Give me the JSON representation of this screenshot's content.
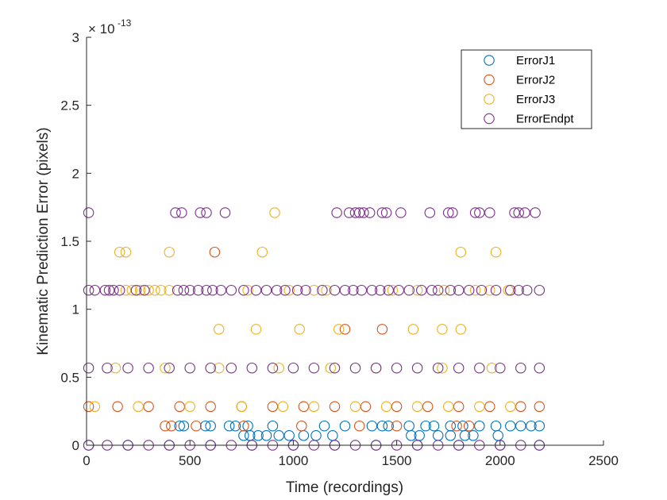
{
  "chart_data": {
    "type": "scatter",
    "xlabel": "Time (recordings)",
    "ylabel": "Kinematic Prediction Error (pixels)",
    "xlim": [
      0,
      2500
    ],
    "ylim": [
      0,
      3e-13
    ],
    "y_exponent_base": "× 10",
    "y_exponent_power": "-13",
    "xticks": [
      0,
      500,
      1000,
      1500,
      2000,
      2500
    ],
    "xtick_labels": [
      "0",
      "500",
      "1000",
      "1500",
      "2000",
      "2500"
    ],
    "yticks": [
      0,
      0.5,
      1,
      1.5,
      2,
      2.5,
      3
    ],
    "ytick_labels": [
      "0",
      "0.5",
      "1",
      "1.5",
      "2",
      "2.5",
      "3"
    ],
    "grid": false,
    "legend_position": "top-right",
    "marker": "open-circle",
    "series": [
      {
        "name": "ErrorJ1",
        "color": "#0072BD",
        "points": [
          [
            10,
            0
          ],
          [
            200,
            0
          ],
          [
            400,
            0
          ],
          [
            600,
            0
          ],
          [
            800,
            0
          ],
          [
            1000,
            0
          ],
          [
            1200,
            0
          ],
          [
            1400,
            0
          ],
          [
            1600,
            0
          ],
          [
            1800,
            0
          ],
          [
            2000,
            0
          ],
          [
            2190,
            0
          ],
          [
            450,
            1.42e-14
          ],
          [
            470,
            1.42e-14
          ],
          [
            575,
            1.42e-14
          ],
          [
            600,
            1.42e-14
          ],
          [
            690,
            1.42e-14
          ],
          [
            720,
            1.42e-14
          ],
          [
            780,
            1.42e-14
          ],
          [
            900,
            1.42e-14
          ],
          [
            1150,
            1.42e-14
          ],
          [
            1250,
            1.42e-14
          ],
          [
            1380,
            1.42e-14
          ],
          [
            1430,
            1.42e-14
          ],
          [
            1460,
            1.42e-14
          ],
          [
            1560,
            1.42e-14
          ],
          [
            1640,
            1.42e-14
          ],
          [
            1680,
            1.42e-14
          ],
          [
            1760,
            1.42e-14
          ],
          [
            1820,
            1.42e-14
          ],
          [
            1900,
            1.42e-14
          ],
          [
            1980,
            1.42e-14
          ],
          [
            2050,
            1.42e-14
          ],
          [
            2100,
            1.42e-14
          ],
          [
            2150,
            1.42e-14
          ],
          [
            2190,
            1.42e-14
          ],
          [
            760,
            7.1e-15
          ],
          [
            790,
            7.1e-15
          ],
          [
            830,
            7.1e-15
          ],
          [
            870,
            7.1e-15
          ],
          [
            930,
            7.1e-15
          ],
          [
            980,
            7.1e-15
          ],
          [
            1050,
            7.1e-15
          ],
          [
            1110,
            7.1e-15
          ],
          [
            1190,
            7.1e-15
          ],
          [
            1570,
            7.1e-15
          ],
          [
            1610,
            7.1e-15
          ],
          [
            1700,
            7.1e-15
          ],
          [
            1760,
            7.1e-15
          ],
          [
            1830,
            7.1e-15
          ],
          [
            1870,
            7.1e-15
          ],
          [
            1990,
            7.1e-15
          ]
        ]
      },
      {
        "name": "ErrorJ2",
        "color": "#D95319",
        "points": [
          [
            10,
            2.84e-14
          ],
          [
            150,
            2.84e-14
          ],
          [
            300,
            2.84e-14
          ],
          [
            450,
            2.84e-14
          ],
          [
            600,
            2.84e-14
          ],
          [
            750,
            2.84e-14
          ],
          [
            900,
            2.84e-14
          ],
          [
            1050,
            2.84e-14
          ],
          [
            1200,
            2.84e-14
          ],
          [
            1350,
            2.84e-14
          ],
          [
            1500,
            2.84e-14
          ],
          [
            1650,
            2.84e-14
          ],
          [
            1800,
            2.84e-14
          ],
          [
            1950,
            2.84e-14
          ],
          [
            2100,
            2.84e-14
          ],
          [
            2190,
            2.84e-14
          ],
          [
            380,
            1.42e-14
          ],
          [
            410,
            1.42e-14
          ],
          [
            530,
            1.42e-14
          ],
          [
            760,
            1.42e-14
          ],
          [
            1040,
            1.42e-14
          ],
          [
            1320,
            1.42e-14
          ],
          [
            1500,
            1.42e-14
          ],
          [
            1790,
            1.42e-14
          ],
          [
            1850,
            1.42e-14
          ],
          [
            1250,
            8.53e-14
          ],
          [
            1430,
            8.53e-14
          ],
          [
            620,
            1.42e-13
          ]
        ]
      },
      {
        "name": "ErrorJ3",
        "color": "#EDB120",
        "points": [
          [
            40,
            2.84e-14
          ],
          [
            250,
            2.84e-14
          ],
          [
            500,
            2.84e-14
          ],
          [
            750,
            2.84e-14
          ],
          [
            950,
            2.84e-14
          ],
          [
            1100,
            2.84e-14
          ],
          [
            1300,
            2.84e-14
          ],
          [
            1450,
            2.84e-14
          ],
          [
            1600,
            2.84e-14
          ],
          [
            1750,
            2.84e-14
          ],
          [
            1900,
            2.84e-14
          ],
          [
            2050,
            2.84e-14
          ],
          [
            140,
            5.68e-14
          ],
          [
            380,
            5.68e-14
          ],
          [
            640,
            5.68e-14
          ],
          [
            930,
            5.68e-14
          ],
          [
            1180,
            5.68e-14
          ],
          [
            1400,
            5.68e-14
          ],
          [
            1720,
            5.68e-14
          ],
          [
            1960,
            5.68e-14
          ],
          [
            190,
            1.14e-13
          ],
          [
            220,
            1.14e-13
          ],
          [
            260,
            1.14e-13
          ],
          [
            300,
            1.14e-13
          ],
          [
            330,
            1.14e-13
          ],
          [
            360,
            1.14e-13
          ],
          [
            400,
            1.14e-13
          ],
          [
            780,
            1.14e-13
          ],
          [
            980,
            1.14e-13
          ],
          [
            1100,
            1.14e-13
          ],
          [
            1160,
            1.14e-13
          ],
          [
            1480,
            1.14e-13
          ],
          [
            1600,
            1.14e-13
          ],
          [
            1730,
            1.14e-13
          ],
          [
            1880,
            1.14e-13
          ],
          [
            1950,
            1.14e-13
          ],
          [
            2040,
            1.14e-13
          ],
          [
            640,
            8.53e-14
          ],
          [
            820,
            8.53e-14
          ],
          [
            1030,
            8.53e-14
          ],
          [
            1220,
            8.53e-14
          ],
          [
            1580,
            8.53e-14
          ],
          [
            1720,
            8.53e-14
          ],
          [
            1810,
            8.53e-14
          ],
          [
            160,
            1.42e-13
          ],
          [
            190,
            1.42e-13
          ],
          [
            400,
            1.42e-13
          ],
          [
            850,
            1.42e-13
          ],
          [
            1810,
            1.42e-13
          ],
          [
            1980,
            1.42e-13
          ],
          [
            910,
            1.71e-13
          ]
        ]
      },
      {
        "name": "ErrorEndpt",
        "color": "#7E2F8E",
        "points": [
          [
            10,
            0
          ],
          [
            100,
            0
          ],
          [
            200,
            0
          ],
          [
            300,
            0
          ],
          [
            400,
            0
          ],
          [
            500,
            0
          ],
          [
            600,
            0
          ],
          [
            700,
            0
          ],
          [
            800,
            0
          ],
          [
            900,
            0
          ],
          [
            1000,
            0
          ],
          [
            1100,
            0
          ],
          [
            1200,
            0
          ],
          [
            1300,
            0
          ],
          [
            1400,
            0
          ],
          [
            1500,
            0
          ],
          [
            1600,
            0
          ],
          [
            1700,
            0
          ],
          [
            1800,
            0
          ],
          [
            1900,
            0
          ],
          [
            2000,
            0
          ],
          [
            2100,
            0
          ],
          [
            2190,
            0
          ],
          [
            10,
            5.68e-14
          ],
          [
            100,
            5.68e-14
          ],
          [
            200,
            5.68e-14
          ],
          [
            300,
            5.68e-14
          ],
          [
            400,
            5.68e-14
          ],
          [
            500,
            5.68e-14
          ],
          [
            600,
            5.68e-14
          ],
          [
            700,
            5.68e-14
          ],
          [
            800,
            5.68e-14
          ],
          [
            900,
            5.68e-14
          ],
          [
            1000,
            5.68e-14
          ],
          [
            1100,
            5.68e-14
          ],
          [
            1200,
            5.68e-14
          ],
          [
            1300,
            5.68e-14
          ],
          [
            1400,
            5.68e-14
          ],
          [
            1500,
            5.68e-14
          ],
          [
            1600,
            5.68e-14
          ],
          [
            1700,
            5.68e-14
          ],
          [
            1800,
            5.68e-14
          ],
          [
            1900,
            5.68e-14
          ],
          [
            2000,
            5.68e-14
          ],
          [
            2100,
            5.68e-14
          ],
          [
            2190,
            5.68e-14
          ],
          [
            10,
            1.14e-13
          ],
          [
            40,
            1.14e-13
          ],
          [
            90,
            1.14e-13
          ],
          [
            110,
            1.14e-13
          ],
          [
            130,
            1.14e-13
          ],
          [
            160,
            1.14e-13
          ],
          [
            240,
            1.14e-13
          ],
          [
            280,
            1.14e-13
          ],
          [
            440,
            1.14e-13
          ],
          [
            470,
            1.14e-13
          ],
          [
            500,
            1.14e-13
          ],
          [
            540,
            1.14e-13
          ],
          [
            580,
            1.14e-13
          ],
          [
            610,
            1.14e-13
          ],
          [
            650,
            1.14e-13
          ],
          [
            700,
            1.14e-13
          ],
          [
            760,
            1.14e-13
          ],
          [
            820,
            1.14e-13
          ],
          [
            870,
            1.14e-13
          ],
          [
            920,
            1.14e-13
          ],
          [
            960,
            1.14e-13
          ],
          [
            1020,
            1.14e-13
          ],
          [
            1060,
            1.14e-13
          ],
          [
            1140,
            1.14e-13
          ],
          [
            1200,
            1.14e-13
          ],
          [
            1250,
            1.14e-13
          ],
          [
            1290,
            1.14e-13
          ],
          [
            1330,
            1.14e-13
          ],
          [
            1380,
            1.14e-13
          ],
          [
            1420,
            1.14e-13
          ],
          [
            1460,
            1.14e-13
          ],
          [
            1510,
            1.14e-13
          ],
          [
            1560,
            1.14e-13
          ],
          [
            1620,
            1.14e-13
          ],
          [
            1670,
            1.14e-13
          ],
          [
            1700,
            1.14e-13
          ],
          [
            1760,
            1.14e-13
          ],
          [
            1800,
            1.14e-13
          ],
          [
            1850,
            1.14e-13
          ],
          [
            1910,
            1.14e-13
          ],
          [
            1980,
            1.14e-13
          ],
          [
            2050,
            1.14e-13
          ],
          [
            2090,
            1.14e-13
          ],
          [
            2130,
            1.14e-13
          ],
          [
            2190,
            1.14e-13
          ],
          [
            10,
            1.71e-13
          ],
          [
            430,
            1.71e-13
          ],
          [
            460,
            1.71e-13
          ],
          [
            550,
            1.71e-13
          ],
          [
            580,
            1.71e-13
          ],
          [
            670,
            1.71e-13
          ],
          [
            1210,
            1.71e-13
          ],
          [
            1270,
            1.71e-13
          ],
          [
            1300,
            1.71e-13
          ],
          [
            1320,
            1.71e-13
          ],
          [
            1340,
            1.71e-13
          ],
          [
            1370,
            1.71e-13
          ],
          [
            1430,
            1.71e-13
          ],
          [
            1450,
            1.71e-13
          ],
          [
            1520,
            1.71e-13
          ],
          [
            1660,
            1.71e-13
          ],
          [
            1750,
            1.71e-13
          ],
          [
            1770,
            1.71e-13
          ],
          [
            1880,
            1.71e-13
          ],
          [
            1900,
            1.71e-13
          ],
          [
            1950,
            1.71e-13
          ],
          [
            2070,
            1.71e-13
          ],
          [
            2090,
            1.71e-13
          ],
          [
            2120,
            1.71e-13
          ],
          [
            2170,
            1.71e-13
          ]
        ]
      }
    ]
  }
}
